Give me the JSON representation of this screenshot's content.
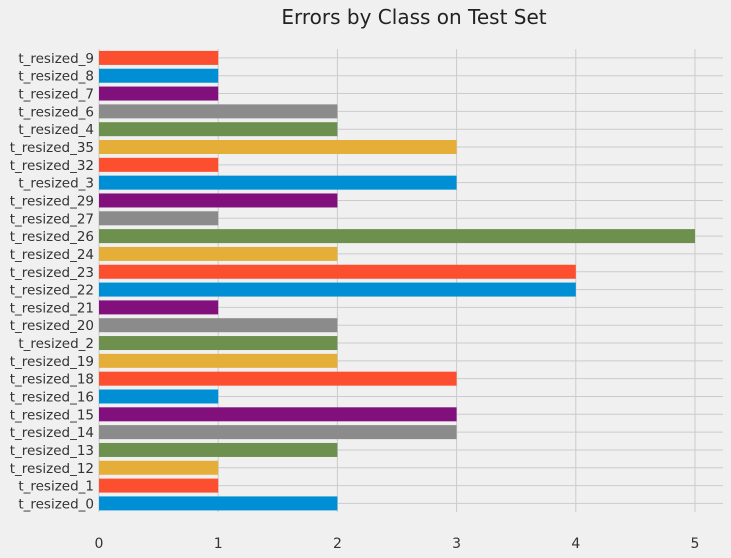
{
  "chart_data": {
    "type": "bar",
    "orientation": "horizontal",
    "title": "Errors by Class on Test Set",
    "xlabel": "",
    "ylabel": "",
    "xlim": [
      0,
      5.25
    ],
    "xticks": [
      "0",
      "1",
      "2",
      "3",
      "4",
      "5"
    ],
    "grid": true,
    "legend": "none",
    "color_cycle": [
      "#008fd5",
      "#fc4f30",
      "#e5ae38",
      "#6d904f",
      "#8b8b8b",
      "#810f7c"
    ],
    "categories": [
      "t_resized_0",
      "t_resized_1",
      "t_resized_12",
      "t_resized_13",
      "t_resized_14",
      "t_resized_15",
      "t_resized_16",
      "t_resized_18",
      "t_resized_19",
      "t_resized_2",
      "t_resized_20",
      "t_resized_21",
      "t_resized_22",
      "t_resized_23",
      "t_resized_24",
      "t_resized_26",
      "t_resized_27",
      "t_resized_29",
      "t_resized_3",
      "t_resized_32",
      "t_resized_35",
      "t_resized_4",
      "t_resized_6",
      "t_resized_7",
      "t_resized_8",
      "t_resized_9"
    ],
    "values": [
      2,
      1,
      1,
      2,
      3,
      3,
      1,
      3,
      2,
      2,
      2,
      1,
      4,
      4,
      2,
      5,
      1,
      2,
      3,
      1,
      3,
      2,
      2,
      1,
      1,
      1
    ]
  }
}
